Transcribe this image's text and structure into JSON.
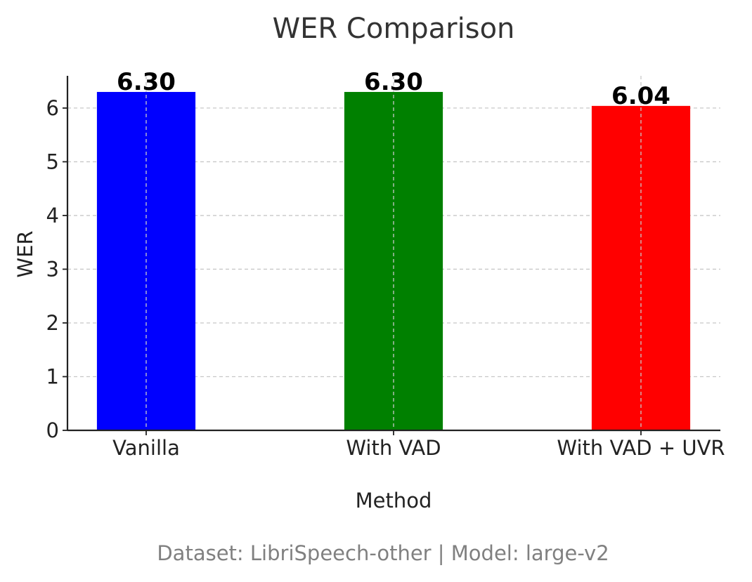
{
  "chart_data": {
    "type": "bar",
    "title": "WER Comparison",
    "xlabel": "Method",
    "ylabel": "WER",
    "categories": [
      "Vanilla",
      "With VAD",
      "With VAD + UVR"
    ],
    "values": [
      6.3,
      6.3,
      6.04
    ],
    "value_labels": [
      "6.30",
      "6.30",
      "6.04"
    ],
    "colors": [
      "#0000ff",
      "#008000",
      "#ff0000"
    ],
    "ylim": [
      0,
      6.6
    ],
    "yticks": [
      0,
      1,
      2,
      3,
      4,
      5,
      6
    ],
    "grid": true,
    "footnote": "Dataset: LibriSpeech-other | Model: large-v2"
  }
}
